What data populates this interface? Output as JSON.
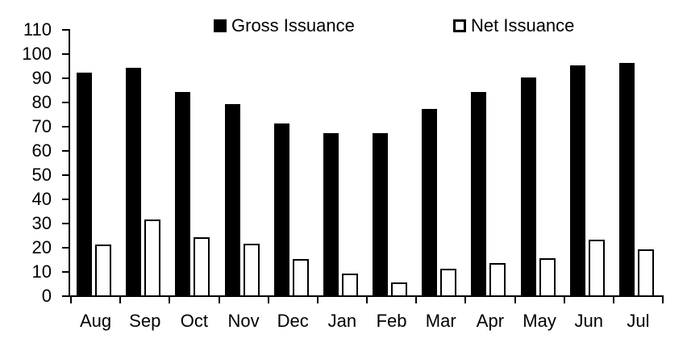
{
  "chart_data": {
    "type": "bar",
    "title": "",
    "xlabel": "",
    "ylabel": "",
    "categories": [
      "Aug",
      "Sep",
      "Oct",
      "Nov",
      "Dec",
      "Jan",
      "Feb",
      "Mar",
      "Apr",
      "May",
      "Jun",
      "Jul"
    ],
    "series": [
      {
        "name": "Gross Issuance",
        "style": "filled",
        "fill_color": "#000000",
        "values": [
          92,
          94,
          84,
          79,
          71,
          67,
          67,
          77,
          84,
          90,
          95,
          96
        ]
      },
      {
        "name": "Net Issuance",
        "style": "outlined",
        "fill_color": "#ffffff",
        "border_color": "#000000",
        "values": [
          21,
          31.5,
          24,
          21.5,
          15,
          9,
          5.5,
          11,
          13.5,
          15.5,
          23,
          19
        ]
      }
    ],
    "ylim": [
      0,
      110
    ],
    "yticks": [
      0,
      10,
      20,
      30,
      40,
      50,
      60,
      70,
      80,
      90,
      100,
      110
    ],
    "grid": false,
    "legend_position": "top",
    "axis_color": "#000000",
    "background_color": "#ffffff"
  }
}
